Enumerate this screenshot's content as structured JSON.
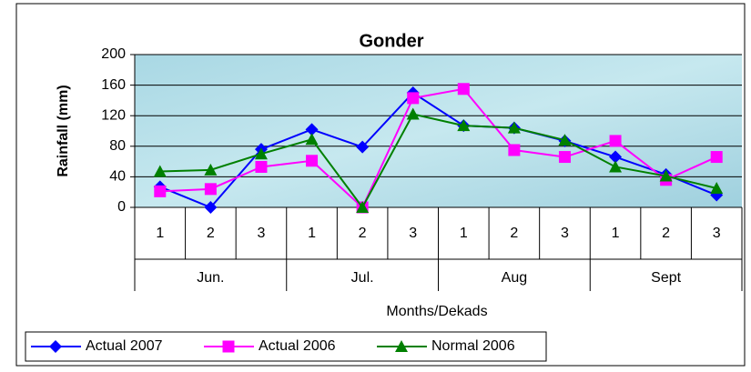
{
  "chart_data": {
    "type": "line",
    "title": "Gonder",
    "y_label": "Rainfall (mm)",
    "x_label": "Months/Dekads",
    "categories": [
      "1",
      "2",
      "3",
      "1",
      "2",
      "3",
      "1",
      "2",
      "3",
      "1",
      "2",
      "3"
    ],
    "groups": [
      "Jun.",
      "Jul.",
      "Aug",
      "Sept"
    ],
    "series": [
      {
        "name": "Actual 2007",
        "color": "#0000ff",
        "marker": "diamond",
        "values": [
          27,
          0,
          76,
          102,
          79,
          150,
          107,
          104,
          87,
          66,
          43,
          16
        ]
      },
      {
        "name": "Actual 2006",
        "color": "#ff00ff",
        "marker": "square",
        "values": [
          21,
          24,
          53,
          61,
          0,
          143,
          155,
          75,
          66,
          87,
          36,
          66
        ]
      },
      {
        "name": "Normal 2006",
        "color": "#008000",
        "marker": "triangle",
        "values": [
          47,
          49,
          70,
          89,
          0,
          122,
          107,
          104,
          88,
          53,
          41,
          25
        ]
      }
    ],
    "ylim": [
      0,
      200
    ],
    "yticks": [
      0,
      40,
      80,
      120,
      160,
      200
    ],
    "grid": true,
    "legend": "bottom-left"
  }
}
